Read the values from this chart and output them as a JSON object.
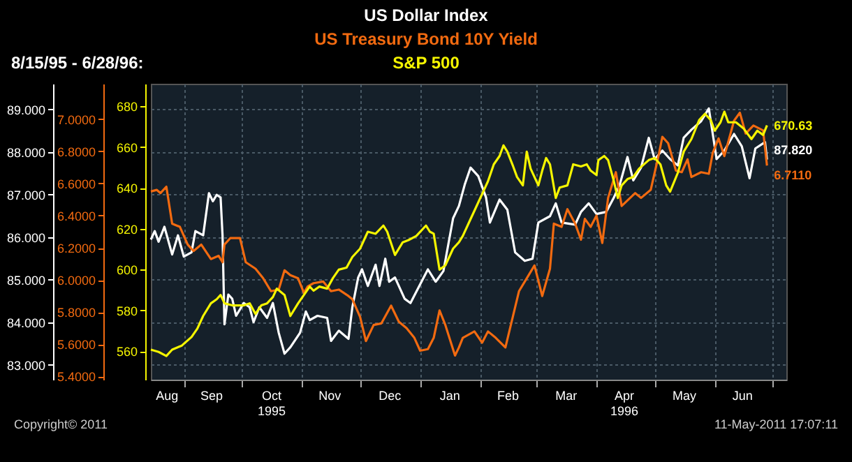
{
  "chart_data": {
    "type": "line",
    "title": "8/15/95 - 6/28/96:",
    "legend": "top",
    "grid": true,
    "annotations": [
      "Copyright© 2011",
      "11-May-2011 17:07:11"
    ],
    "xlim": [
      "1995-08-15",
      "1996-07-08"
    ],
    "xticks": [
      {
        "value": "1995-08-23",
        "label": "Aug"
      },
      {
        "value": "1995-09-01",
        "label": null
      },
      {
        "value": "1995-09-15",
        "label": "Sep"
      },
      {
        "value": "1995-10-01",
        "label": null
      },
      {
        "value": "1995-10-16",
        "label": "Oct\n1995"
      },
      {
        "value": "1995-11-01",
        "label": null
      },
      {
        "value": "1995-11-15",
        "label": "Nov"
      },
      {
        "value": "1995-12-01",
        "label": null
      },
      {
        "value": "1995-12-16",
        "label": "Dec"
      },
      {
        "value": "1996-01-01",
        "label": null
      },
      {
        "value": "1996-01-16",
        "label": "Jan"
      },
      {
        "value": "1996-02-01",
        "label": null
      },
      {
        "value": "1996-02-15",
        "label": "Feb"
      },
      {
        "value": "1996-03-01",
        "label": null
      },
      {
        "value": "1996-03-16",
        "label": "Mar"
      },
      {
        "value": "1996-04-01",
        "label": null
      },
      {
        "value": "1996-04-15",
        "label": "Apr\n1996"
      },
      {
        "value": "1996-05-01",
        "label": null
      },
      {
        "value": "1996-05-16",
        "label": "May"
      },
      {
        "value": "1996-06-01",
        "label": null
      },
      {
        "value": "1996-06-15",
        "label": "Jun"
      },
      {
        "value": "1996-07-01",
        "label": null
      }
    ],
    "ylim": [
      82.65,
      89.6
    ],
    "yticks": [
      {
        "value": 83,
        "label": "83.000"
      },
      {
        "value": 84,
        "label": "84.000"
      },
      {
        "value": 85,
        "label": "85.000"
      },
      {
        "value": 86,
        "label": "86.000"
      },
      {
        "value": 87,
        "label": "87.000"
      },
      {
        "value": 88,
        "label": "88.000"
      },
      {
        "value": 89,
        "label": "89.000"
      }
    ],
    "y2lim": [
      5.38,
      7.22
    ],
    "y2ticks": [
      {
        "value": 5.4,
        "label": "5.4000"
      },
      {
        "value": 5.6,
        "label": "5.6000"
      },
      {
        "value": 5.8,
        "label": "5.8000"
      },
      {
        "value": 6.0,
        "label": "6.0000"
      },
      {
        "value": 6.2,
        "label": "6.2000"
      },
      {
        "value": 6.4,
        "label": "6.4000"
      },
      {
        "value": 6.6,
        "label": "6.6000"
      },
      {
        "value": 6.8,
        "label": "6.8000"
      },
      {
        "value": 7.0,
        "label": "7.0000"
      }
    ],
    "y3lim": [
      546,
      691
    ],
    "y3ticks": [
      560,
      580,
      600,
      620,
      640,
      660,
      680
    ],
    "series": [
      {
        "name": "US Dollar Index",
        "color": "#ffffff",
        "axis": "y",
        "x": [
          "1995-08-15",
          "1995-08-17",
          "1995-08-19",
          "1995-08-22",
          "1995-08-26",
          "1995-08-29",
          "1995-09-01",
          "1995-09-05",
          "1995-09-07",
          "1995-09-11",
          "1995-09-14",
          "1995-09-16",
          "1995-09-18",
          "1995-09-20",
          "1995-09-21",
          "1995-09-22",
          "1995-09-24",
          "1995-09-26",
          "1995-09-28",
          "1995-10-02",
          "1995-10-05",
          "1995-10-07",
          "1995-10-10",
          "1995-10-14",
          "1995-10-17",
          "1995-10-20",
          "1995-10-23",
          "1995-10-26",
          "1995-10-31",
          "1995-11-03",
          "1995-11-05",
          "1995-11-09",
          "1995-11-14",
          "1995-11-16",
          "1995-11-20",
          "1995-11-25",
          "1995-11-27",
          "1995-11-30",
          "1995-12-02",
          "1995-12-05",
          "1995-12-09",
          "1995-12-11",
          "1995-12-14",
          "1995-12-16",
          "1995-12-19",
          "1995-12-24",
          "1995-12-27",
          "1995-12-31",
          "1996-01-05",
          "1996-01-09",
          "1996-01-13",
          "1996-01-18",
          "1996-01-21",
          "1996-01-24",
          "1996-01-27",
          "1996-01-31",
          "1996-02-04",
          "1996-02-06",
          "1996-02-11",
          "1996-02-15",
          "1996-02-19",
          "1996-02-24",
          "1996-02-28",
          "1996-03-02",
          "1996-03-08",
          "1996-03-11",
          "1996-03-14",
          "1996-03-21",
          "1996-03-24",
          "1996-03-28",
          "1996-04-01",
          "1996-04-06",
          "1996-04-10",
          "1996-04-13",
          "1996-04-17",
          "1996-04-20",
          "1996-04-24",
          "1996-04-28",
          "1996-05-01",
          "1996-05-05",
          "1996-05-09",
          "1996-05-13",
          "1996-05-16",
          "1996-05-20",
          "1996-05-25",
          "1996-05-29",
          "1996-06-02",
          "1996-06-06",
          "1996-06-11",
          "1996-06-15",
          "1996-06-19",
          "1996-06-22",
          "1996-06-27",
          "1996-06-28"
        ],
        "values": [
          85.94,
          86.14,
          85.89,
          86.24,
          85.59,
          86.04,
          85.54,
          85.64,
          86.14,
          86.04,
          87.03,
          86.84,
          86.99,
          86.93,
          86.04,
          83.95,
          84.65,
          84.55,
          84.15,
          84.45,
          84.35,
          84.0,
          84.35,
          84.1,
          84.45,
          83.75,
          83.26,
          83.41,
          83.75,
          84.25,
          84.05,
          84.15,
          84.1,
          83.56,
          83.8,
          83.61,
          84.35,
          85.05,
          85.24,
          84.85,
          85.35,
          84.85,
          85.49,
          84.95,
          85.05,
          84.55,
          84.45,
          84.8,
          85.24,
          84.95,
          85.2,
          86.44,
          86.73,
          87.23,
          87.63,
          87.43,
          86.93,
          86.34,
          86.88,
          86.64,
          85.64,
          85.44,
          85.49,
          86.34,
          86.49,
          86.79,
          86.34,
          86.29,
          86.59,
          86.79,
          86.54,
          86.59,
          86.93,
          87.23,
          87.88,
          87.33,
          87.63,
          88.33,
          87.83,
          88.03,
          87.83,
          87.68,
          88.33,
          88.52,
          88.72,
          89.02,
          87.83,
          88.03,
          88.42,
          88.13,
          87.38,
          88.08,
          88.23,
          87.82
        ],
        "value_labels": [
          null,
          null,
          null,
          null,
          null,
          null,
          null,
          null,
          null,
          null,
          null,
          null,
          null,
          null,
          null,
          null,
          null,
          null,
          null,
          null,
          null,
          null,
          null,
          null,
          null,
          null,
          null,
          null,
          null,
          null,
          null,
          null,
          null,
          null,
          null,
          null,
          null,
          null,
          null,
          null,
          null,
          null,
          null,
          null,
          null,
          null,
          null,
          null,
          null,
          null,
          null,
          null,
          null,
          null,
          null,
          null,
          null,
          null,
          null,
          null,
          null,
          null,
          null,
          null,
          null,
          null,
          null,
          null,
          null,
          null,
          null,
          null,
          null,
          null,
          null,
          null,
          null,
          null,
          null,
          null,
          null,
          null,
          null,
          null,
          null,
          null,
          null,
          null,
          null,
          null,
          null,
          null,
          null,
          "87.820"
        ]
      },
      {
        "name": "US Treasury Bond 10Y Yield",
        "color": "#f26a10",
        "axis": "y2",
        "x": [
          "1995-08-15",
          "1995-08-18",
          "1995-08-20",
          "1995-08-23",
          "1995-08-26",
          "1995-08-30",
          "1995-09-03",
          "1995-09-06",
          "1995-09-10",
          "1995-09-15",
          "1995-09-19",
          "1995-09-21",
          "1995-09-22",
          "1995-09-25",
          "1995-09-30",
          "1995-10-03",
          "1995-10-08",
          "1995-10-12",
          "1995-10-16",
          "1995-10-20",
          "1995-10-23",
          "1995-10-26",
          "1995-10-30",
          "1995-11-02",
          "1995-11-04",
          "1995-11-07",
          "1995-11-12",
          "1995-11-16",
          "1995-11-20",
          "1995-11-25",
          "1995-11-27",
          "1995-12-01",
          "1995-12-04",
          "1995-12-08",
          "1995-12-12",
          "1995-12-17",
          "1995-12-21",
          "1995-12-25",
          "1995-12-29",
          "1996-01-01",
          "1996-01-05",
          "1996-01-08",
          "1996-01-11",
          "1996-01-14",
          "1996-01-19",
          "1996-01-21",
          "1996-01-23",
          "1996-01-29",
          "1996-02-02",
          "1996-02-05",
          "1996-02-09",
          "1996-02-14",
          "1996-02-18",
          "1996-02-21",
          "1996-02-25",
          "1996-02-29",
          "1996-03-04",
          "1996-03-08",
          "1996-03-10",
          "1996-03-14",
          "1996-03-17",
          "1996-03-21",
          "1996-03-24",
          "1996-03-26",
          "1996-03-29",
          "1996-04-01",
          "1996-04-04",
          "1996-04-07",
          "1996-04-11",
          "1996-04-14",
          "1996-04-21",
          "1996-04-24",
          "1996-04-29",
          "1996-05-03",
          "1996-05-05",
          "1996-05-08",
          "1996-05-12",
          "1996-05-15",
          "1996-05-18",
          "1996-05-20",
          "1996-05-25",
          "1996-05-29",
          "1996-05-31",
          "1996-06-03",
          "1996-06-06",
          "1996-06-11",
          "1996-06-14",
          "1996-06-17",
          "1996-06-21",
          "1996-06-26",
          "1996-06-28"
        ],
        "values": [
          6.55,
          6.56,
          6.54,
          6.58,
          6.35,
          6.33,
          6.22,
          6.18,
          6.22,
          6.13,
          6.15,
          6.11,
          6.22,
          6.26,
          6.26,
          6.11,
          6.07,
          6.01,
          5.93,
          5.94,
          6.06,
          6.03,
          6.01,
          5.92,
          5.96,
          5.98,
          5.99,
          5.93,
          5.94,
          5.9,
          5.88,
          5.77,
          5.62,
          5.72,
          5.73,
          5.84,
          5.74,
          5.7,
          5.64,
          5.56,
          5.57,
          5.64,
          5.81,
          5.72,
          5.53,
          5.58,
          5.64,
          5.68,
          5.61,
          5.68,
          5.64,
          5.58,
          5.78,
          5.93,
          6.01,
          6.09,
          5.9,
          6.07,
          6.35,
          6.33,
          6.44,
          6.35,
          6.25,
          6.38,
          6.33,
          6.4,
          6.23,
          6.51,
          6.67,
          6.46,
          6.54,
          6.51,
          6.56,
          6.77,
          6.89,
          6.85,
          6.68,
          6.67,
          6.75,
          6.64,
          6.67,
          6.66,
          6.79,
          6.88,
          6.77,
          6.99,
          7.04,
          6.91,
          6.96,
          6.93,
          6.711
        ],
        "value_labels": [
          null,
          null,
          null,
          null,
          null,
          null,
          null,
          null,
          null,
          null,
          null,
          null,
          null,
          null,
          null,
          null,
          null,
          null,
          null,
          null,
          null,
          null,
          null,
          null,
          null,
          null,
          null,
          null,
          null,
          null,
          null,
          null,
          null,
          null,
          null,
          null,
          null,
          null,
          null,
          null,
          null,
          null,
          null,
          null,
          null,
          null,
          null,
          null,
          null,
          null,
          null,
          null,
          null,
          null,
          null,
          null,
          null,
          null,
          null,
          null,
          null,
          null,
          null,
          null,
          null,
          null,
          null,
          null,
          null,
          null,
          null,
          null,
          null,
          null,
          null,
          null,
          null,
          null,
          null,
          null,
          null,
          null,
          null,
          null,
          null,
          null,
          null,
          null,
          null,
          null,
          "6.7110"
        ]
      },
      {
        "name": "S&P 500",
        "color": "#f5f500",
        "axis": "y3",
        "x": [
          "1995-08-15",
          "1995-08-19",
          "1995-08-23",
          "1995-08-26",
          "1995-08-31",
          "1995-09-05",
          "1995-09-08",
          "1995-09-11",
          "1995-09-15",
          "1995-09-18",
          "1995-09-20",
          "1995-09-22",
          "1995-09-26",
          "1995-10-02",
          "1995-10-05",
          "1995-10-08",
          "1995-10-11",
          "1995-10-14",
          "1995-10-17",
          "1995-10-19",
          "1995-10-23",
          "1995-10-26",
          "1995-10-30",
          "1995-11-02",
          "1995-11-05",
          "1995-11-07",
          "1995-11-10",
          "1995-11-14",
          "1995-11-17",
          "1995-11-20",
          "1995-11-24",
          "1995-11-27",
          "1995-12-01",
          "1995-12-05",
          "1995-12-09",
          "1995-12-13",
          "1995-12-15",
          "1995-12-19",
          "1995-12-23",
          "1995-12-26",
          "1995-12-30",
          "1996-01-04",
          "1996-01-06",
          "1996-01-08",
          "1996-01-11",
          "1996-01-14",
          "1996-01-18",
          "1996-01-21",
          "1996-01-23",
          "1996-01-26",
          "1996-01-30",
          "1996-02-02",
          "1996-02-05",
          "1996-02-08",
          "1996-02-11",
          "1996-02-13",
          "1996-02-15",
          "1996-02-18",
          "1996-02-20",
          "1996-02-23",
          "1996-02-25",
          "1996-02-27",
          "1996-03-02",
          "1996-03-04",
          "1996-03-06",
          "1996-03-08",
          "1996-03-11",
          "1996-03-13",
          "1996-03-17",
          "1996-03-20",
          "1996-03-24",
          "1996-03-27",
          "1996-03-29",
          "1996-04-01",
          "1996-04-02",
          "1996-04-05",
          "1996-04-07",
          "1996-04-10",
          "1996-04-12",
          "1996-04-14",
          "1996-04-17",
          "1996-04-20",
          "1996-04-23",
          "1996-04-28",
          "1996-05-01",
          "1996-05-04",
          "1996-05-07",
          "1996-05-09",
          "1996-05-13",
          "1996-05-16",
          "1996-05-20",
          "1996-05-24",
          "1996-05-27",
          "1996-05-30",
          "1996-06-01",
          "1996-06-04",
          "1996-06-06",
          "1996-06-08",
          "1996-06-12",
          "1996-06-16",
          "1996-06-20",
          "1996-06-23",
          "1996-06-26",
          "1996-06-28"
        ],
        "values": [
          560.7,
          559.6,
          557.6,
          560.7,
          562.7,
          566.9,
          571,
          577.2,
          583.4,
          585.4,
          587.5,
          583.4,
          582.4,
          582.4,
          583.4,
          578.2,
          582.4,
          583.4,
          586.5,
          590.6,
          587.5,
          577.2,
          583.4,
          587.5,
          591.6,
          589.6,
          591.6,
          590.6,
          595.8,
          599.9,
          600.9,
          606.1,
          610.2,
          618.5,
          617.5,
          621.5,
          618.5,
          607.1,
          613.3,
          614.4,
          616.4,
          621.5,
          618.5,
          617.5,
          599.9,
          602,
          610.2,
          613.3,
          616.4,
          622.6,
          630.8,
          637,
          643.2,
          651.5,
          655.6,
          660.8,
          657.7,
          650.5,
          645.3,
          641.2,
          657.7,
          649.4,
          641.2,
          648.4,
          654.6,
          651.5,
          635,
          640.1,
          641.2,
          651.5,
          650.5,
          651.5,
          648.4,
          646.3,
          653.6,
          655.6,
          653.6,
          643.2,
          635,
          641.2,
          644.3,
          645.3,
          649.4,
          653.6,
          654.6,
          651.5,
          641.2,
          638.1,
          647.4,
          657.7,
          663.9,
          673.2,
          676.3,
          673.2,
          668,
          672.1,
          677.3,
          672.1,
          672.1,
          669,
          663.9,
          668,
          665.9,
          670.63
        ],
        "value_labels": [
          null,
          null,
          null,
          null,
          null,
          null,
          null,
          null,
          null,
          null,
          null,
          null,
          null,
          null,
          null,
          null,
          null,
          null,
          null,
          null,
          null,
          null,
          null,
          null,
          null,
          null,
          null,
          null,
          null,
          null,
          null,
          null,
          null,
          null,
          null,
          null,
          null,
          null,
          null,
          null,
          null,
          null,
          null,
          null,
          null,
          null,
          null,
          null,
          null,
          null,
          null,
          null,
          null,
          null,
          null,
          null,
          null,
          null,
          null,
          null,
          null,
          null,
          null,
          null,
          null,
          null,
          null,
          null,
          null,
          null,
          null,
          null,
          null,
          null,
          null,
          null,
          null,
          null,
          null,
          null,
          null,
          null,
          null,
          null,
          null,
          null,
          null,
          null,
          null,
          null,
          null,
          null,
          null,
          null,
          null,
          null,
          null,
          null,
          null,
          null,
          null,
          null,
          null,
          "670.63"
        ]
      }
    ]
  }
}
